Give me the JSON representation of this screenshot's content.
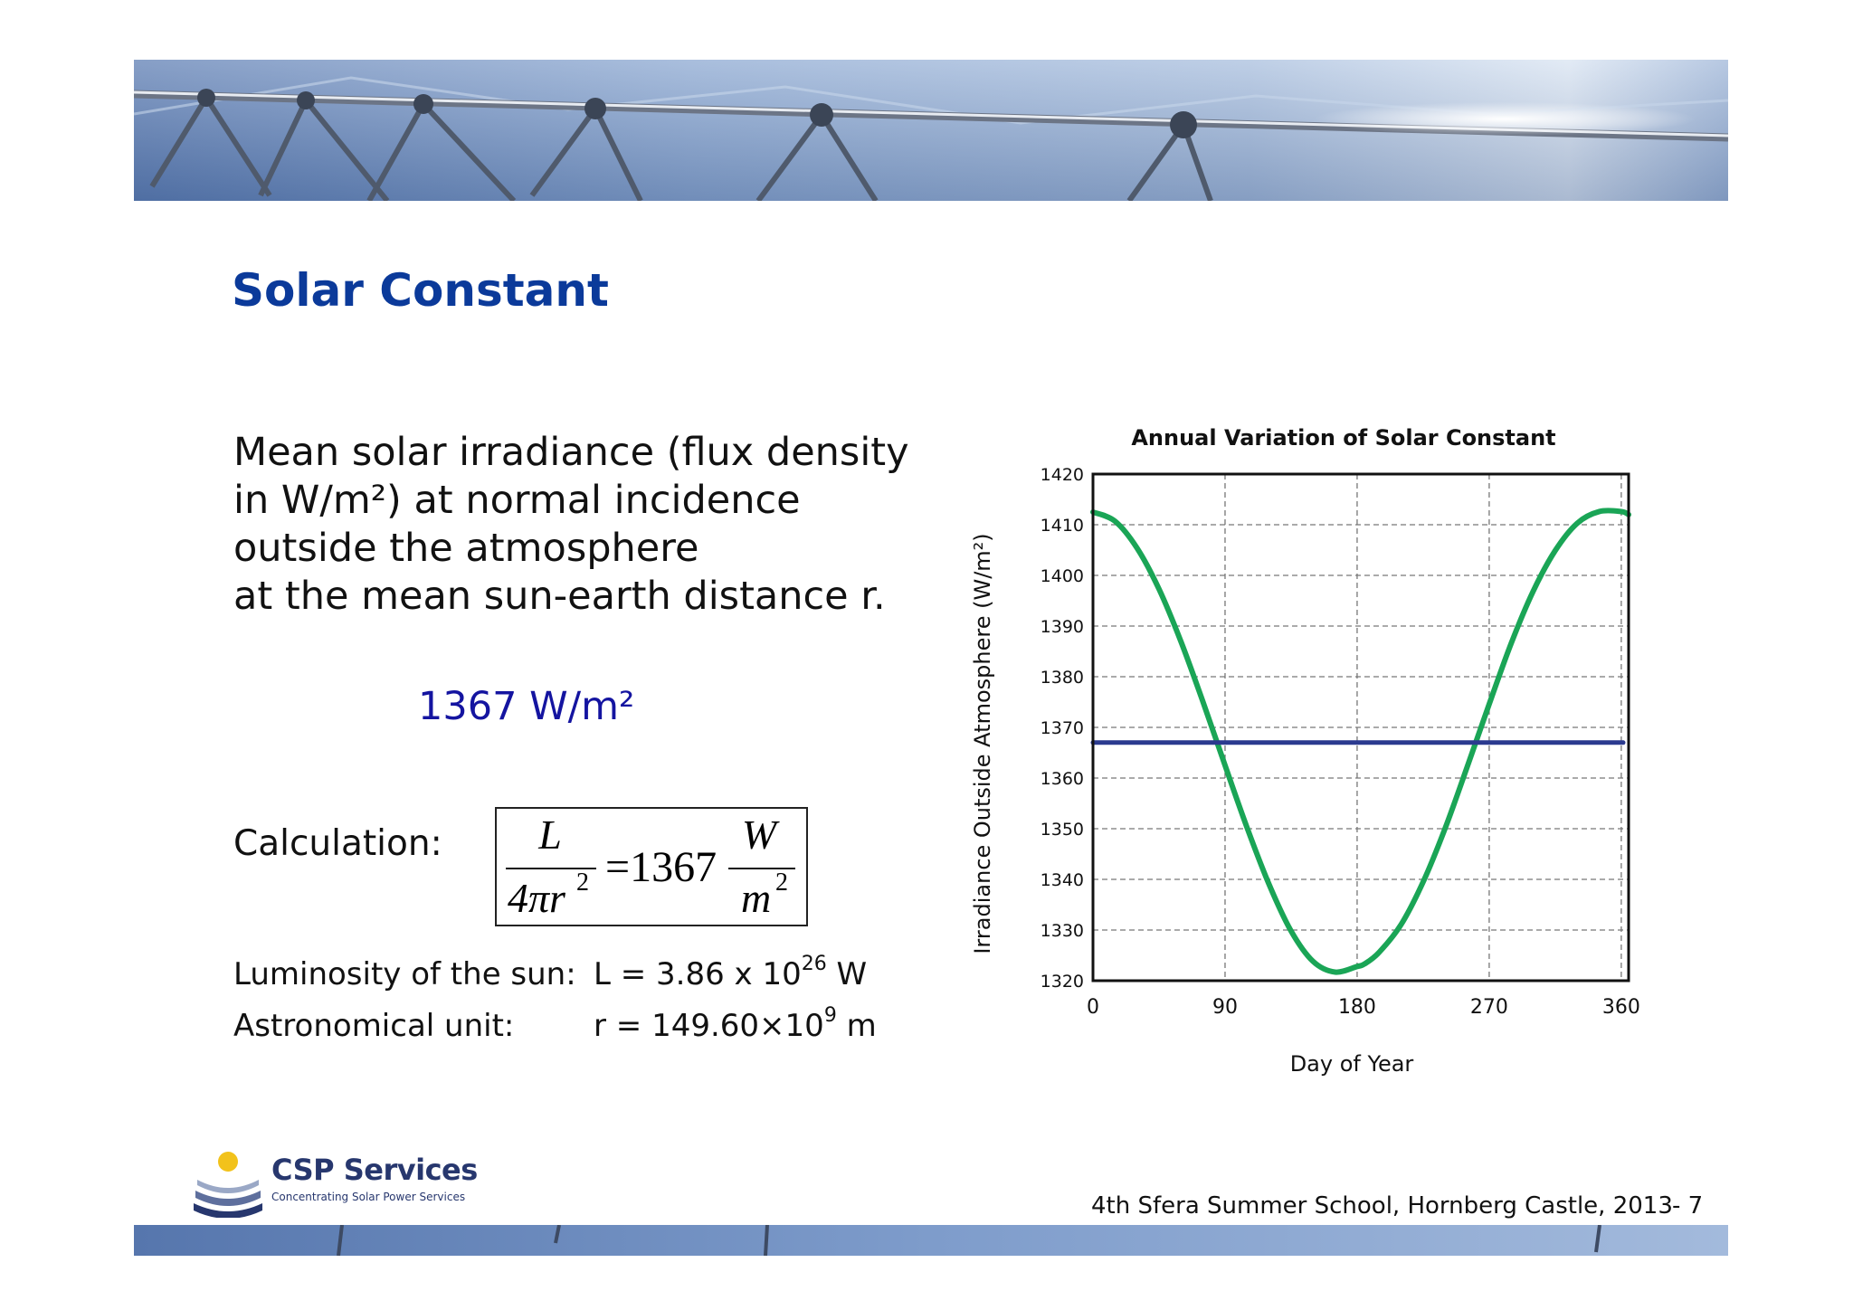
{
  "slide": {
    "title": "Solar Constant",
    "definition_lines": [
      "Mean solar irradiance (flux density",
      "in W/m²) at normal incidence",
      "outside the atmosphere",
      "at the mean sun-earth distance r."
    ],
    "highlight_value": "1367 W/m²",
    "calculation_label": "Calculation:",
    "formula": {
      "numerator_left": "L",
      "denominator_left": "4πr",
      "denominator_left_exp": "2",
      "equals_value": "=1367",
      "numerator_right": "W",
      "denominator_right": "m",
      "denominator_right_exp": "2"
    },
    "luminosity": {
      "label": "Luminosity of the sun:",
      "value_prefix": "L = 3.86 x 10",
      "value_exp": "26",
      "value_suffix": " W"
    },
    "astronomical_unit": {
      "label": "Astronomical unit:",
      "value_prefix": "r = 149.60×10",
      "value_exp": "9",
      "value_suffix": " m"
    }
  },
  "footer": {
    "event": "4th Sfera Summer School, Hornberg Castle, 2013",
    "page": "- 7"
  },
  "logo": {
    "name": "CSP Services",
    "tagline": "Concentrating Solar Power Services"
  },
  "chart_data": {
    "type": "line",
    "title": "Annual Variation of Solar Constant",
    "xlabel": "Day of Year",
    "ylabel": "Irradiance Outside Atmosphere (W/m²)",
    "xlim": [
      0,
      365
    ],
    "ylim": [
      1320,
      1420
    ],
    "xticks": [
      0,
      90,
      180,
      270,
      360
    ],
    "yticks": [
      1320,
      1330,
      1340,
      1350,
      1360,
      1370,
      1380,
      1390,
      1400,
      1410,
      1420
    ],
    "grid": true,
    "series": [
      {
        "color": "#1aa556",
        "x": [
          0,
          15,
          30,
          45,
          60,
          75,
          90,
          105,
          120,
          135,
          150,
          165,
          180,
          185,
          195,
          210,
          225,
          240,
          255,
          270,
          285,
          300,
          315,
          330,
          345,
          360,
          365
        ],
        "values": [
          1412.5,
          1410.7,
          1405.4,
          1397.3,
          1386.9,
          1375.0,
          1362.5,
          1350.2,
          1339.0,
          1329.8,
          1323.8,
          1321.7,
          1322.8,
          1323.3,
          1325.6,
          1331.1,
          1339.5,
          1350.1,
          1362.2,
          1374.6,
          1386.6,
          1396.9,
          1404.9,
          1410.3,
          1412.6,
          1412.6,
          1412.0
        ]
      },
      {
        "color": "#2b3a8f",
        "x": [
          0,
          365
        ],
        "values": [
          1367,
          1367
        ]
      }
    ]
  }
}
